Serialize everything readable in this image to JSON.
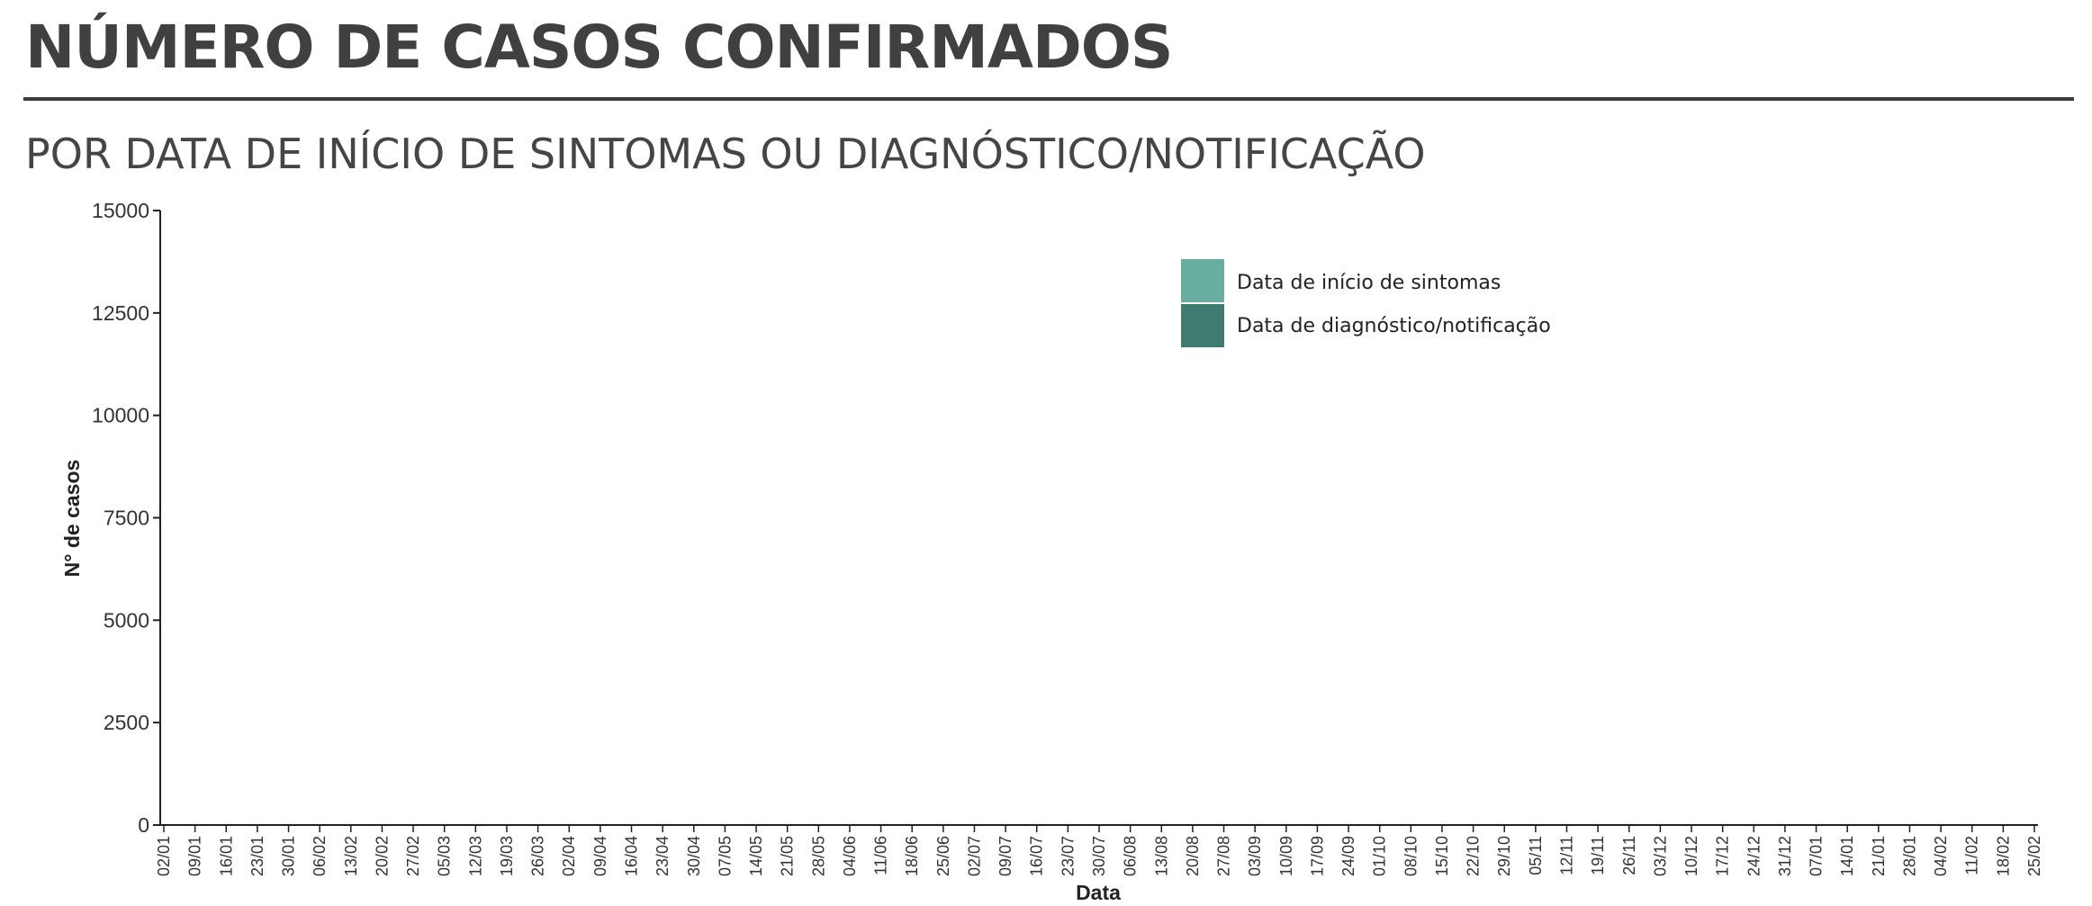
{
  "header": {
    "title": "NÚMERO DE CASOS CONFIRMADOS",
    "subtitle": "POR DATA DE INÍCIO DE SINTOMAS OU DIAGNÓSTICO/NOTIFICAÇÃO"
  },
  "chart_data": {
    "type": "bar",
    "xlabel": "Data",
    "ylabel": "N° de casos",
    "ylim": [
      0,
      15000
    ],
    "yticks": [
      0,
      2500,
      5000,
      7500,
      10000,
      12500,
      15000
    ],
    "legend_position": "top-right",
    "x_tick_labels": [
      "02/01",
      "09/01",
      "16/01",
      "23/01",
      "30/01",
      "06/02",
      "13/02",
      "20/02",
      "27/02",
      "05/03",
      "12/03",
      "19/03",
      "26/03",
      "02/04",
      "09/04",
      "16/04",
      "23/04",
      "30/04",
      "07/05",
      "14/05",
      "21/05",
      "28/05",
      "04/06",
      "11/06",
      "18/06",
      "25/06",
      "02/07",
      "09/07",
      "16/07",
      "23/07",
      "30/07",
      "06/08",
      "13/08",
      "20/08",
      "27/08",
      "03/09",
      "10/09",
      "17/09",
      "24/09",
      "01/10",
      "08/10",
      "15/10",
      "22/10",
      "29/10",
      "05/11",
      "12/11",
      "19/11",
      "26/11",
      "03/12",
      "10/12",
      "17/12",
      "24/12",
      "31/12",
      "07/01",
      "14/01",
      "21/01",
      "28/01",
      "04/02",
      "11/02",
      "18/02",
      "25/02"
    ],
    "series": [
      {
        "name": "Data de início de sintomas",
        "color": "#8cc4b8",
        "legend_color": "#69ada1",
        "values": [
          0,
          0,
          0,
          0,
          0,
          0,
          0,
          0,
          0,
          0,
          0,
          0,
          0,
          0,
          0,
          0,
          0,
          0,
          0,
          0,
          0,
          0,
          0,
          0,
          0,
          0,
          0,
          0,
          0,
          0,
          0,
          0,
          0,
          0,
          0,
          0,
          0,
          0,
          0,
          0,
          0,
          0,
          0,
          0,
          0,
          0,
          0,
          0,
          0,
          0,
          0,
          0,
          0,
          0,
          0,
          0,
          0,
          0,
          0,
          0,
          0,
          0,
          0,
          0,
          0,
          0,
          0,
          0,
          0,
          0,
          0,
          0,
          0,
          0,
          0,
          0,
          0,
          0,
          0,
          0,
          0,
          0,
          0,
          0,
          0,
          0,
          0,
          0,
          0,
          0,
          0,
          0,
          0,
          0,
          0,
          0,
          0,
          0,
          0,
          0,
          0,
          0,
          0,
          0,
          0,
          0,
          0,
          0,
          0,
          0,
          0,
          0,
          0,
          0,
          0,
          0,
          0,
          0,
          0,
          0,
          0,
          0,
          0,
          0,
          0,
          0,
          0,
          0,
          0,
          0,
          0,
          0,
          0,
          0,
          0,
          0,
          0,
          0,
          0,
          0,
          0,
          0,
          0,
          0,
          0,
          0,
          0,
          0,
          0,
          0,
          0,
          0,
          0,
          0,
          0,
          0,
          0,
          0,
          0,
          0,
          0,
          0,
          0,
          0,
          0,
          0,
          0,
          0,
          0,
          0,
          0,
          0,
          0,
          0,
          0,
          0,
          0,
          0,
          0,
          0,
          0,
          0,
          0,
          0,
          0,
          0,
          0,
          0,
          0,
          0,
          0,
          0,
          0,
          0,
          0,
          0,
          0,
          0,
          0,
          0,
          0,
          0,
          0,
          0,
          0,
          0,
          0,
          0,
          0,
          0,
          0,
          0,
          0,
          0,
          0,
          0,
          0,
          0,
          0,
          0,
          0,
          0,
          0,
          0,
          0,
          0,
          0,
          0,
          0,
          0,
          0,
          0,
          0,
          0,
          0,
          0,
          0,
          0,
          0,
          0,
          0,
          0,
          0,
          0,
          0,
          0,
          0,
          0,
          0,
          0,
          0,
          0,
          0,
          0,
          0,
          0,
          0,
          0,
          0,
          0,
          0,
          0,
          0,
          0,
          0,
          0,
          0,
          0,
          0,
          0,
          0,
          0,
          0,
          0,
          0,
          0,
          0,
          0,
          0,
          0,
          0,
          0,
          0,
          0,
          0,
          0,
          0,
          0,
          0,
          0,
          0,
          0,
          0,
          0,
          0,
          0,
          0,
          0,
          0,
          0,
          0,
          0,
          0,
          0,
          0,
          0,
          0,
          0,
          0,
          0,
          0,
          0,
          0,
          0,
          0,
          0,
          0,
          0,
          0,
          0,
          0,
          0,
          0,
          0,
          0,
          0,
          0,
          0,
          0,
          0,
          0,
          0,
          0,
          0,
          0,
          0,
          0,
          0,
          0,
          0,
          0,
          0,
          0,
          0,
          0,
          0,
          0,
          0,
          0,
          0,
          0,
          0,
          0,
          0,
          0,
          0,
          0,
          0,
          0,
          0,
          0,
          0,
          0,
          0,
          0,
          0,
          0,
          0,
          0,
          0,
          0,
          0,
          0,
          0,
          0,
          0,
          0,
          0,
          0,
          0,
          0,
          0,
          0,
          0,
          0,
          0,
          0,
          0,
          0,
          0,
          0,
          0,
          0,
          0,
          0,
          0,
          0,
          0,
          0,
          0,
          0,
          0,
          0,
          0,
          0,
          0,
          0,
          0,
          0,
          0,
          0,
          0,
          0,
          0,
          0,
          0,
          0,
          0,
          0,
          0,
          0,
          0,
          0,
          0,
          0,
          0,
          0,
          0,
          0,
          0,
          0,
          0,
          0,
          0,
          0,
          0,
          0,
          0,
          0,
          0,
          0,
          0,
          0,
          0,
          0,
          0,
          0,
          0,
          0,
          0,
          0,
          0,
          0,
          0,
          0,
          0,
          0,
          0,
          0,
          0,
          0,
          0,
          0,
          0,
          0,
          0,
          0,
          0,
          0,
          0,
          0,
          0,
          0
        ]
      },
      {
        "name": "Data de diagnóstico/notificação",
        "color": "#5a9488",
        "legend_color": "#3f7b71",
        "values": [
          0,
          0,
          0,
          0,
          0,
          0,
          0,
          0,
          0,
          0,
          0,
          0,
          0,
          0,
          0,
          0,
          0,
          0,
          0,
          0,
          0,
          0,
          0,
          0,
          0,
          0,
          0,
          0,
          0,
          0,
          0,
          0,
          0,
          0,
          0,
          0,
          0,
          0,
          0,
          0,
          0,
          0,
          0,
          0,
          0,
          0,
          0,
          0,
          0,
          0,
          0,
          0,
          0,
          0,
          0,
          0,
          0,
          0,
          0,
          0,
          0,
          0,
          0,
          0,
          0,
          0,
          0,
          0,
          0,
          0,
          0,
          0,
          0,
          0,
          0,
          0,
          0,
          0,
          0,
          0,
          0,
          0,
          0,
          0,
          0,
          0,
          0,
          0,
          0,
          0,
          0,
          0,
          0,
          0,
          0,
          0,
          0,
          0,
          0,
          0,
          0,
          0,
          0,
          0,
          0,
          0,
          0,
          0,
          0,
          0,
          0,
          0,
          0,
          0,
          0,
          0,
          0,
          0,
          0,
          0,
          0,
          0,
          0,
          0,
          0,
          0,
          0,
          0,
          0,
          0,
          0,
          0,
          0,
          0,
          0,
          0,
          0,
          0,
          0,
          0,
          0,
          0,
          0,
          0,
          0,
          0,
          0,
          0,
          0,
          0,
          0,
          0,
          0,
          0,
          0,
          0,
          0,
          0,
          0,
          0,
          0,
          0,
          0,
          0,
          0,
          0,
          0,
          0,
          0,
          0,
          0,
          0,
          0,
          0,
          0,
          0,
          0,
          0,
          0,
          0,
          0,
          0,
          0,
          0,
          0,
          0,
          0,
          0,
          0,
          0,
          0,
          0,
          0,
          0,
          0,
          0,
          0,
          0,
          0,
          0,
          0,
          0,
          0,
          0,
          0,
          0,
          0,
          0,
          0,
          0,
          0,
          0,
          0,
          0,
          0,
          0,
          0,
          0,
          0,
          0,
          0,
          0,
          0,
          0,
          0,
          0,
          0,
          0,
          0,
          0,
          0,
          0,
          0,
          0,
          0,
          0,
          0,
          0,
          0,
          0,
          0,
          0,
          0,
          0,
          0,
          0,
          0,
          0,
          0,
          0,
          0,
          0,
          0,
          0,
          0,
          0,
          0,
          0,
          0,
          0,
          0,
          0,
          0,
          0,
          0,
          0,
          0,
          0,
          0,
          0,
          0,
          0,
          0,
          0,
          0,
          0,
          0,
          0,
          0,
          0,
          0,
          0,
          0,
          0,
          0,
          0,
          0,
          0,
          0,
          0,
          0,
          0,
          0,
          0,
          0,
          0,
          0,
          0,
          0,
          0,
          0,
          0,
          0,
          0,
          0,
          0,
          0,
          0,
          0,
          0,
          0,
          0,
          0,
          0,
          0,
          0,
          0,
          0,
          0,
          0,
          0,
          0,
          0,
          0,
          0,
          0,
          0,
          0,
          0,
          0,
          0,
          0,
          0,
          0,
          0,
          0,
          0,
          0,
          0,
          0,
          0,
          0,
          0,
          0,
          0,
          0,
          0,
          0,
          0,
          0,
          0,
          0,
          0,
          0,
          0,
          0,
          0,
          0,
          0,
          0,
          0,
          0,
          0,
          0,
          0,
          0,
          0,
          0,
          0,
          0,
          0,
          0,
          0,
          0,
          0,
          0,
          0,
          0,
          0,
          0,
          0,
          0,
          0,
          0,
          0,
          0,
          0,
          0,
          0,
          0,
          0,
          0,
          0,
          0,
          0,
          0,
          0,
          0,
          0,
          0,
          0,
          0,
          0,
          0,
          0,
          0,
          0,
          0,
          0,
          0,
          0,
          0,
          0,
          0,
          0,
          0,
          0,
          0,
          0,
          0,
          0,
          0,
          0,
          0,
          0,
          0,
          0,
          0,
          0,
          0,
          0,
          0,
          0,
          0,
          0,
          0,
          0,
          0,
          0,
          0,
          0,
          0,
          0,
          0,
          0,
          0,
          0,
          0,
          0,
          0,
          0,
          0,
          0,
          0,
          0,
          0,
          0,
          0,
          0
        ]
      }
    ]
  }
}
